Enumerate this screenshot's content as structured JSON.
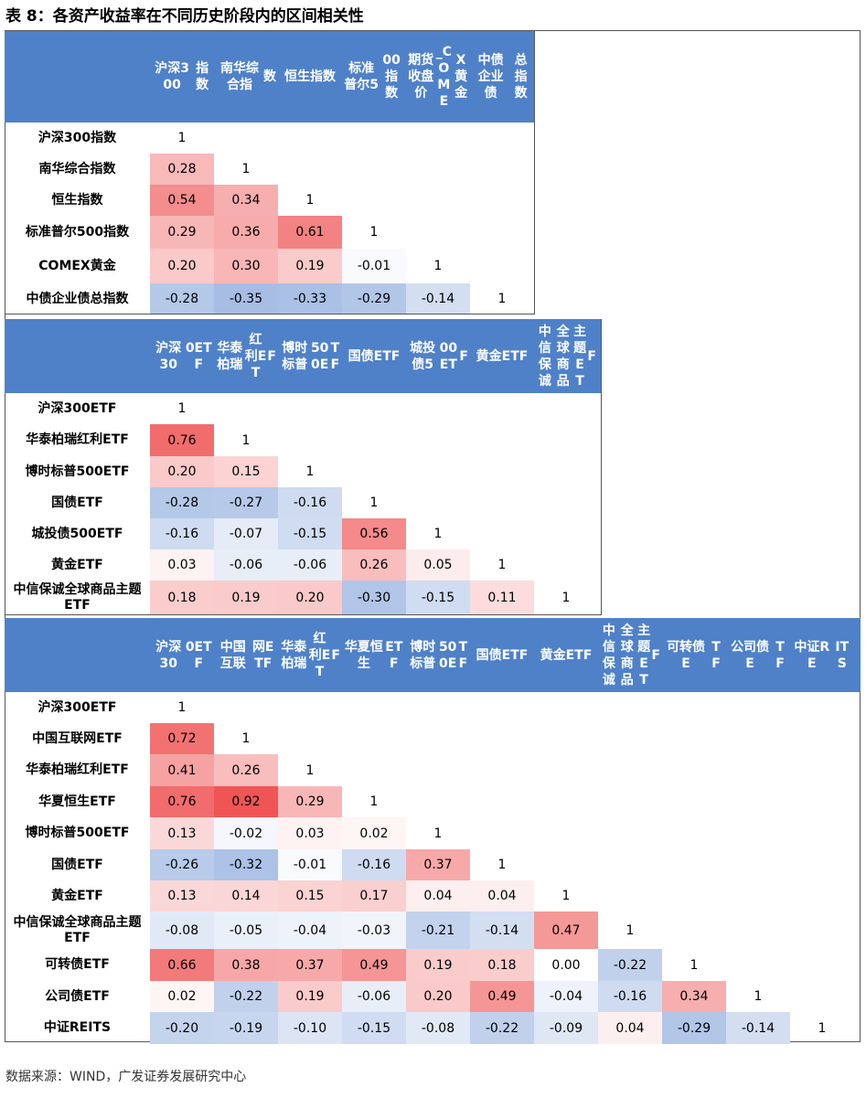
{
  "title": "表 8：各资产收益率在不同历史阶段内的区间相关性",
  "source": "数据来源：WIND，广发证券发展研究中心",
  "colors": {
    "header_bg": "#4f81c9",
    "positive": "#ee4a4a",
    "negative": "#3d6fc4"
  },
  "tables": [
    {
      "headers": [
        "沪深300指数",
        "南华综合指数",
        "恒生指数",
        "标准普尔500指数",
        "期货收盘价_COMEX黄金",
        "中债企业债总指数"
      ],
      "rows": [
        {
          "label": "沪深300指数",
          "values": [
            "1"
          ]
        },
        {
          "label": "南华综合指数",
          "values": [
            "0.28",
            "1"
          ]
        },
        {
          "label": "恒生指数",
          "values": [
            "0.54",
            "0.34",
            "1"
          ]
        },
        {
          "label": "标准普尔500指数",
          "values": [
            "0.29",
            "0.36",
            "0.61",
            "1"
          ]
        },
        {
          "label": "COMEX黄金",
          "values": [
            "0.20",
            "0.30",
            "0.19",
            "-0.01",
            "1"
          ]
        },
        {
          "label": "中债企业债总指数",
          "values": [
            "-0.28",
            "-0.35",
            "-0.33",
            "-0.29",
            "-0.14",
            "1"
          ]
        }
      ]
    },
    {
      "headers": [
        "沪深300ETF",
        "华泰柏瑞红利ETF",
        "博时标普500ETF",
        "国债ETF",
        "城投债500ETF",
        "黄金ETF",
        "中信保诚全球商品主题ETF"
      ],
      "rows": [
        {
          "label": "沪深300ETF",
          "values": [
            "1"
          ]
        },
        {
          "label": "华泰柏瑞红利ETF",
          "values": [
            "0.76",
            "1"
          ]
        },
        {
          "label": "博时标普500ETF",
          "values": [
            "0.20",
            "0.15",
            "1"
          ]
        },
        {
          "label": "国债ETF",
          "values": [
            "-0.28",
            "-0.27",
            "-0.16",
            "1"
          ]
        },
        {
          "label": "城投债500ETF",
          "values": [
            "-0.16",
            "-0.07",
            "-0.15",
            "0.56",
            "1"
          ]
        },
        {
          "label": "黄金ETF",
          "values": [
            "0.03",
            "-0.06",
            "-0.06",
            "0.26",
            "0.05",
            "1"
          ]
        },
        {
          "label": "中信保诚全球商品主题ETF",
          "values": [
            "0.18",
            "0.19",
            "0.20",
            "-0.30",
            "-0.15",
            "0.11",
            "1"
          ]
        }
      ]
    },
    {
      "headers": [
        "沪深300ETF",
        "中国互联网ETF",
        "华泰柏瑞红利ETF",
        "华夏恒生ETF",
        "博时标普500ETF",
        "国债ETF",
        "黄金ETF",
        "中信保诚全球商品主题ETF",
        "可转债ETF",
        "公司债ETF",
        "中证REITS"
      ],
      "rows": [
        {
          "label": "沪深300ETF",
          "values": [
            "1"
          ]
        },
        {
          "label": "中国互联网ETF",
          "values": [
            "0.72",
            "1"
          ]
        },
        {
          "label": "华泰柏瑞红利ETF",
          "values": [
            "0.41",
            "0.26",
            "1"
          ]
        },
        {
          "label": "华夏恒生ETF",
          "values": [
            "0.76",
            "0.92",
            "0.29",
            "1"
          ]
        },
        {
          "label": "博时标普500ETF",
          "values": [
            "0.13",
            "-0.02",
            "0.03",
            "0.02",
            "1"
          ]
        },
        {
          "label": "国债ETF",
          "values": [
            "-0.26",
            "-0.32",
            "-0.01",
            "-0.16",
            "0.37",
            "1"
          ]
        },
        {
          "label": "黄金ETF",
          "values": [
            "0.13",
            "0.14",
            "0.15",
            "0.17",
            "0.04",
            "0.04",
            "1"
          ]
        },
        {
          "label": "中信保诚全球商品主题ETF",
          "values": [
            "-0.08",
            "-0.05",
            "-0.04",
            "-0.03",
            "-0.21",
            "-0.14",
            "0.47",
            "1"
          ]
        },
        {
          "label": "可转债ETF",
          "values": [
            "0.66",
            "0.38",
            "0.37",
            "0.49",
            "0.19",
            "0.18",
            "0.00",
            "-0.22",
            "1"
          ]
        },
        {
          "label": "公司债ETF",
          "values": [
            "0.02",
            "-0.22",
            "0.19",
            "-0.06",
            "0.20",
            "0.49",
            "-0.04",
            "-0.16",
            "0.34",
            "1"
          ]
        },
        {
          "label": "中证REITS",
          "values": [
            "-0.20",
            "-0.19",
            "-0.10",
            "-0.15",
            "-0.08",
            "-0.22",
            "-0.09",
            "0.04",
            "-0.29",
            "-0.14",
            "1"
          ]
        }
      ]
    }
  ]
}
